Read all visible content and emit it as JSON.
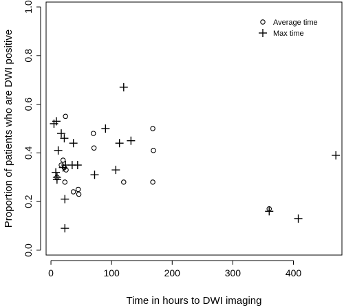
{
  "chart_data": {
    "type": "scatter",
    "title": "",
    "xlabel": "Time in hours to DWI imaging",
    "ylabel": "Proportion of patients who are DWI positive",
    "xlim": [
      -8,
      480
    ],
    "ylim": [
      -0.02,
      1.02
    ],
    "x_ticks": [
      0,
      100,
      200,
      300,
      400
    ],
    "y_ticks": [
      0.0,
      0.2,
      0.4,
      0.6,
      0.8,
      1.0
    ],
    "y_tick_labels": [
      "0.0",
      "0.2",
      "0.4",
      "0.6",
      "0.8",
      "1.0"
    ],
    "grid": false,
    "legend_position": "top-right",
    "series": [
      {
        "name": "Average time",
        "marker": "circle",
        "points": [
          [
            10,
            0.3
          ],
          [
            17,
            0.35
          ],
          [
            20,
            0.37
          ],
          [
            22,
            0.34
          ],
          [
            23,
            0.28
          ],
          [
            24,
            0.55
          ],
          [
            25,
            0.33
          ],
          [
            37,
            0.24
          ],
          [
            45,
            0.25
          ],
          [
            46,
            0.23
          ],
          [
            70,
            0.48
          ],
          [
            71,
            0.42
          ],
          [
            120,
            0.28
          ],
          [
            168,
            0.5
          ],
          [
            169,
            0.41
          ],
          [
            168,
            0.28
          ],
          [
            360,
            0.17
          ]
        ]
      },
      {
        "name": "Max time",
        "marker": "plus",
        "points": [
          [
            5,
            0.52
          ],
          [
            9,
            0.53
          ],
          [
            8,
            0.32
          ],
          [
            10,
            0.29
          ],
          [
            10,
            0.3
          ],
          [
            12,
            0.41
          ],
          [
            17,
            0.48
          ],
          [
            20,
            0.34
          ],
          [
            22,
            0.46
          ],
          [
            24,
            0.35
          ],
          [
            23,
            0.21
          ],
          [
            23,
            0.09
          ],
          [
            37,
            0.44
          ],
          [
            35,
            0.35
          ],
          [
            44,
            0.35
          ],
          [
            72,
            0.31
          ],
          [
            90,
            0.5
          ],
          [
            107,
            0.33
          ],
          [
            113,
            0.44
          ],
          [
            120,
            0.67
          ],
          [
            132,
            0.45
          ],
          [
            360,
            0.16
          ],
          [
            408,
            0.13
          ],
          [
            470,
            0.39
          ]
        ]
      }
    ]
  }
}
